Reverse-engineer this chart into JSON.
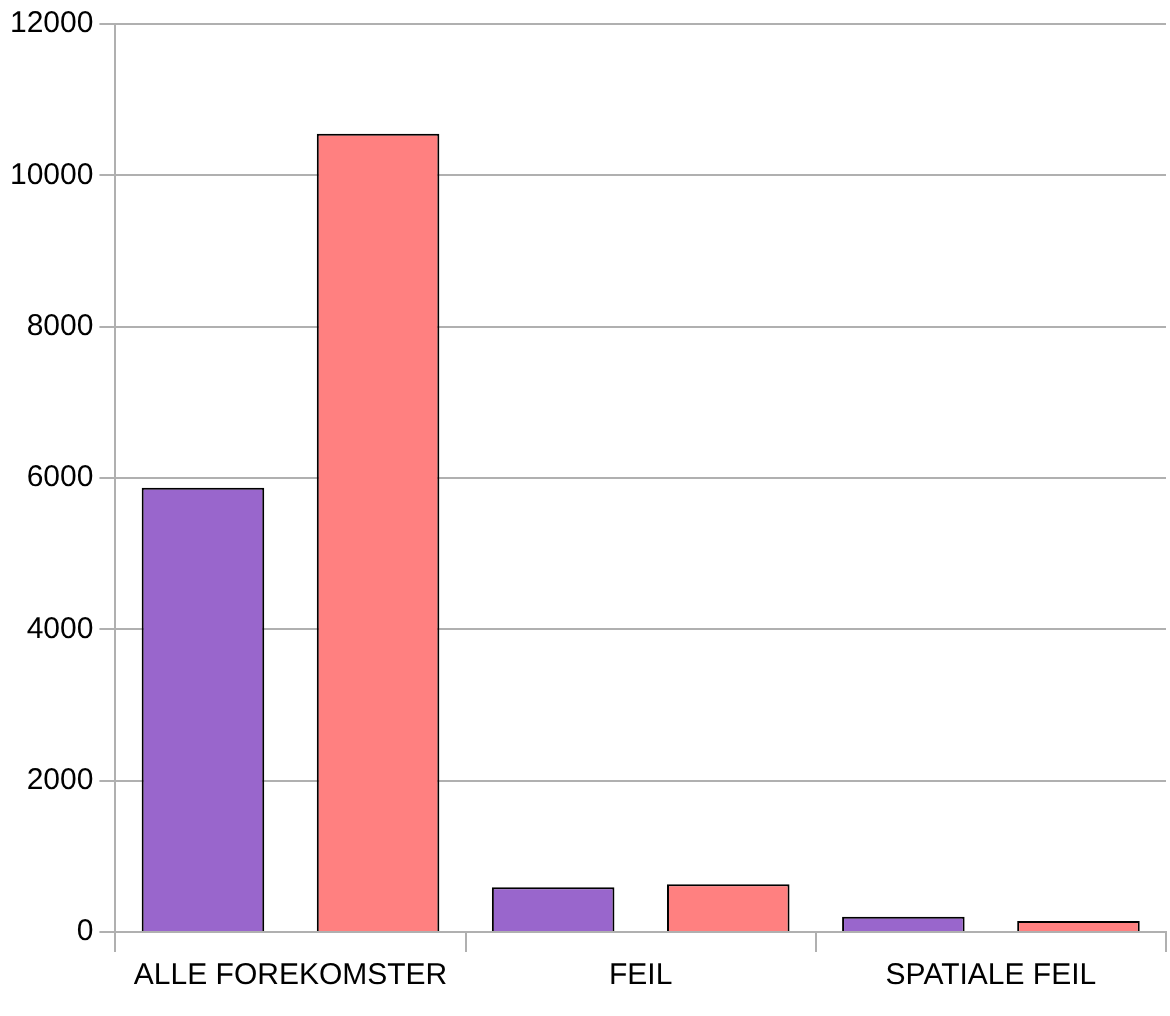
{
  "chart_data": {
    "type": "bar",
    "categories": [
      "ALLE FOREKOMSTER",
      "FEIL",
      "SPATIALE FEIL"
    ],
    "series": [
      {
        "color": "#9966cc",
        "values": [
          5870,
          590,
          200
        ]
      },
      {
        "color": "#ff8080",
        "values": [
          10550,
          630,
          145
        ]
      }
    ],
    "ylim": [
      0,
      12000
    ],
    "yticks": [
      0,
      2000,
      4000,
      6000,
      8000,
      10000,
      12000
    ],
    "grid": "y",
    "legend": false
  }
}
